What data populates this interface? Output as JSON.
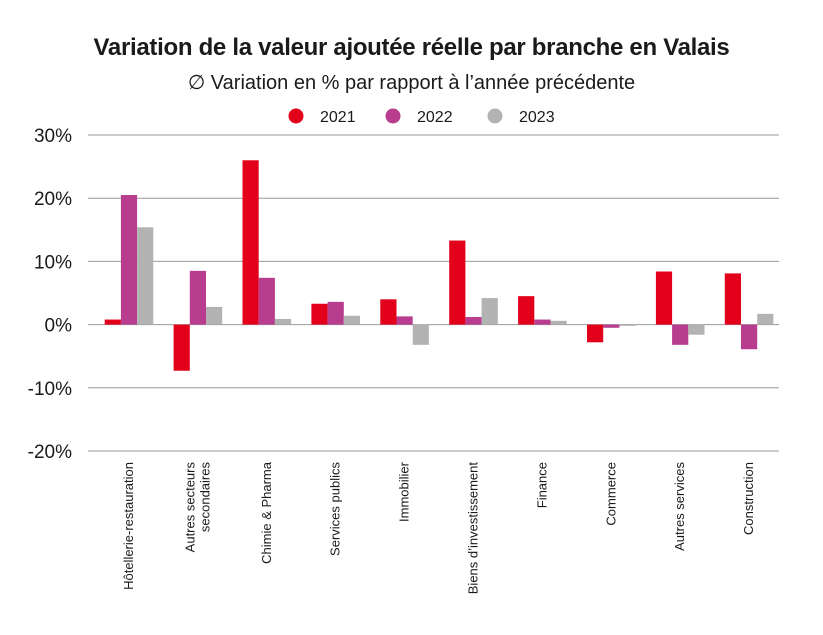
{
  "chart_data": {
    "type": "bar",
    "title": "Variation de la valeur ajoutée réelle par branche en Valais",
    "subtitle": "∅ Variation en % par rapport à l’année précédente",
    "categories": [
      [
        "Hôtellerie-restauration"
      ],
      [
        "Autres secteurs",
        "secondaires"
      ],
      [
        "Chimie & Pharma"
      ],
      [
        "Services publics"
      ],
      [
        "Immobilier"
      ],
      [
        "Biens d’investissement"
      ],
      [
        "Finance"
      ],
      [
        "Commerce"
      ],
      [
        "Autres services"
      ],
      [
        "Construction"
      ]
    ],
    "series": [
      {
        "name": "2021",
        "color": "#e3001b",
        "values": [
          0.8,
          -7.3,
          26.0,
          3.3,
          4.0,
          13.3,
          4.5,
          -2.8,
          8.4,
          8.1
        ]
      },
      {
        "name": "2022",
        "color": "#b83d8e",
        "values": [
          20.5,
          8.5,
          7.4,
          3.6,
          1.3,
          1.2,
          0.8,
          -0.5,
          -3.2,
          -3.9
        ]
      },
      {
        "name": "2023",
        "color": "#b3b3b3",
        "values": [
          15.4,
          2.8,
          0.9,
          1.4,
          -3.2,
          4.2,
          0.6,
          -0.2,
          -1.6,
          1.7
        ]
      }
    ],
    "yticks": [
      "30%",
      "20%",
      "10%",
      "0%",
      "-10%",
      "-20%"
    ],
    "ylim": [
      -20,
      30
    ],
    "grid": true,
    "legend_position": "top-center"
  }
}
